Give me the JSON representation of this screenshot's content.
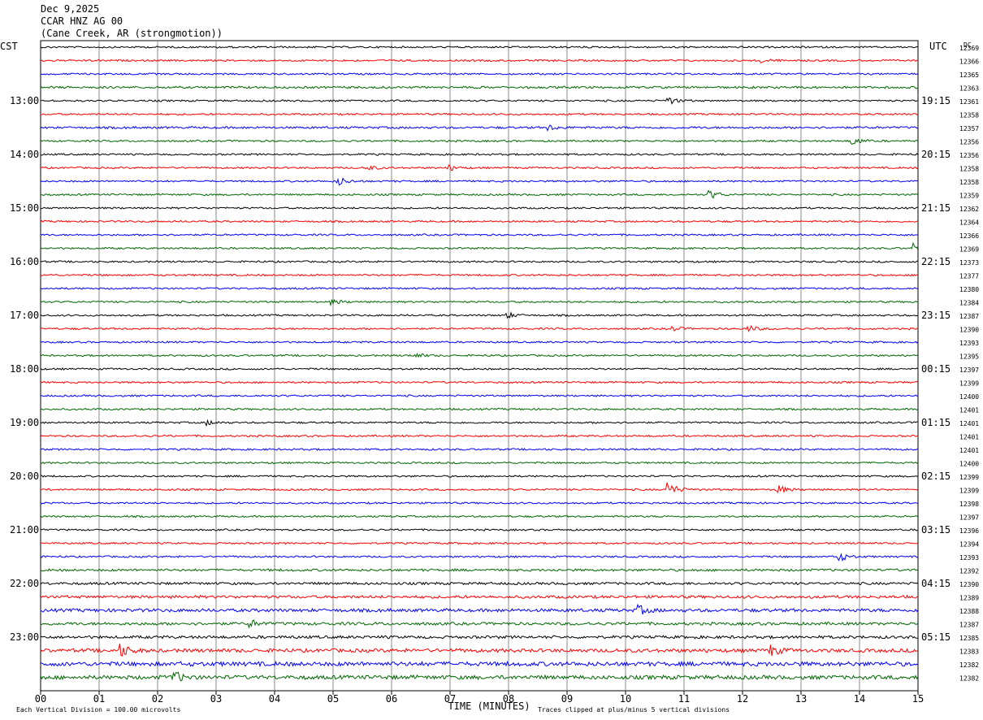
{
  "header": {
    "date": "Dec 9,2025",
    "station": "CCAR HNZ AG 00",
    "location": "(Cane Creek, AR (strongmotion))"
  },
  "left_axis_title": "CST",
  "right_axis_title": "UTC",
  "dc_title": "DC",
  "footer": {
    "xlabel": "TIME (MINUTES)",
    "scale_note": "Each Vertical Division =  100.00 microvolts",
    "clip_note": "Traces clipped at plus/minus 5 vertical divisions"
  },
  "colors": {
    "trace_cycle": [
      "#000000",
      "#ff0000",
      "#0000ff",
      "#006600"
    ],
    "grid": "#888888",
    "background": "#ffffff"
  },
  "chart_data": {
    "type": "line",
    "subtype": "helicorder",
    "x_ticks": [
      "00",
      "01",
      "02",
      "03",
      "04",
      "05",
      "06",
      "07",
      "08",
      "09",
      "10",
      "11",
      "12",
      "13",
      "14",
      "15"
    ],
    "xlim": [
      0,
      15
    ],
    "left_hour_labels": [
      "13:00",
      "14:00",
      "15:00",
      "16:00",
      "17:00",
      "18:00",
      "19:00",
      "20:00",
      "21:00",
      "22:00",
      "23:00"
    ],
    "right_hour_labels": [
      "19:15",
      "20:15",
      "21:15",
      "22:15",
      "23:15",
      "00:15",
      "01:15",
      "02:15",
      "03:15",
      "04:15",
      "05:15"
    ],
    "dc_offsets": [
      "12369",
      "12366",
      "12365",
      "12363",
      "12361",
      "12358",
      "12357",
      "12356",
      "12356",
      "12358",
      "12358",
      "12359",
      "12362",
      "12364",
      "12366",
      "12369",
      "12373",
      "12377",
      "12380",
      "12384",
      "12387",
      "12390",
      "12393",
      "12395",
      "12397",
      "12399",
      "12400",
      "12401",
      "12401",
      "12401",
      "12401",
      "12400",
      "12399",
      "12399",
      "12398",
      "12397",
      "12396",
      "12394",
      "12393",
      "12392",
      "12390",
      "12389",
      "12388",
      "12387",
      "12385",
      "12383",
      "12382",
      "12382"
    ],
    "noise_levels": [
      1,
      1,
      1,
      1.2,
      1,
      1,
      1.2,
      1,
      1,
      1,
      1,
      1,
      1,
      1,
      1,
      1,
      1,
      1,
      1,
      1,
      1,
      1,
      1,
      1,
      1,
      1,
      1,
      1,
      1,
      1,
      1,
      1,
      1,
      1,
      1,
      1,
      1,
      1,
      1,
      1.3,
      1.4,
      1.6,
      1.8,
      1.6,
      1.6,
      2,
      2.4,
      2.2
    ],
    "events": [
      {
        "line": 1,
        "minute": 12.3,
        "amp": 3
      },
      {
        "line": 4,
        "minute": 10.75,
        "amp": 4
      },
      {
        "line": 6,
        "minute": 8.7,
        "amp": 3
      },
      {
        "line": 7,
        "minute": 13.9,
        "amp": 5
      },
      {
        "line": 9,
        "minute": 5.6,
        "amp": 3
      },
      {
        "line": 9,
        "minute": 7.0,
        "amp": 3
      },
      {
        "line": 10,
        "minute": 5.1,
        "amp": 5
      },
      {
        "line": 11,
        "minute": 11.45,
        "amp": 5
      },
      {
        "line": 15,
        "minute": 14.95,
        "amp": 6
      },
      {
        "line": 19,
        "minute": 5.0,
        "amp": 3
      },
      {
        "line": 20,
        "minute": 8.0,
        "amp": 3
      },
      {
        "line": 21,
        "minute": 10.8,
        "amp": 3
      },
      {
        "line": 21,
        "minute": 12.1,
        "amp": 4
      },
      {
        "line": 23,
        "minute": 6.4,
        "amp": 3
      },
      {
        "line": 28,
        "minute": 2.85,
        "amp": 3
      },
      {
        "line": 33,
        "minute": 10.75,
        "amp": 9
      },
      {
        "line": 33,
        "minute": 12.6,
        "amp": 6
      },
      {
        "line": 38,
        "minute": 13.65,
        "amp": 6
      },
      {
        "line": 42,
        "minute": 10.25,
        "amp": 5
      },
      {
        "line": 43,
        "minute": 3.6,
        "amp": 4
      },
      {
        "line": 45,
        "minute": 1.4,
        "amp": 7
      },
      {
        "line": 45,
        "minute": 12.5,
        "amp": 6
      },
      {
        "line": 47,
        "minute": 2.3,
        "amp": 6
      }
    ]
  }
}
